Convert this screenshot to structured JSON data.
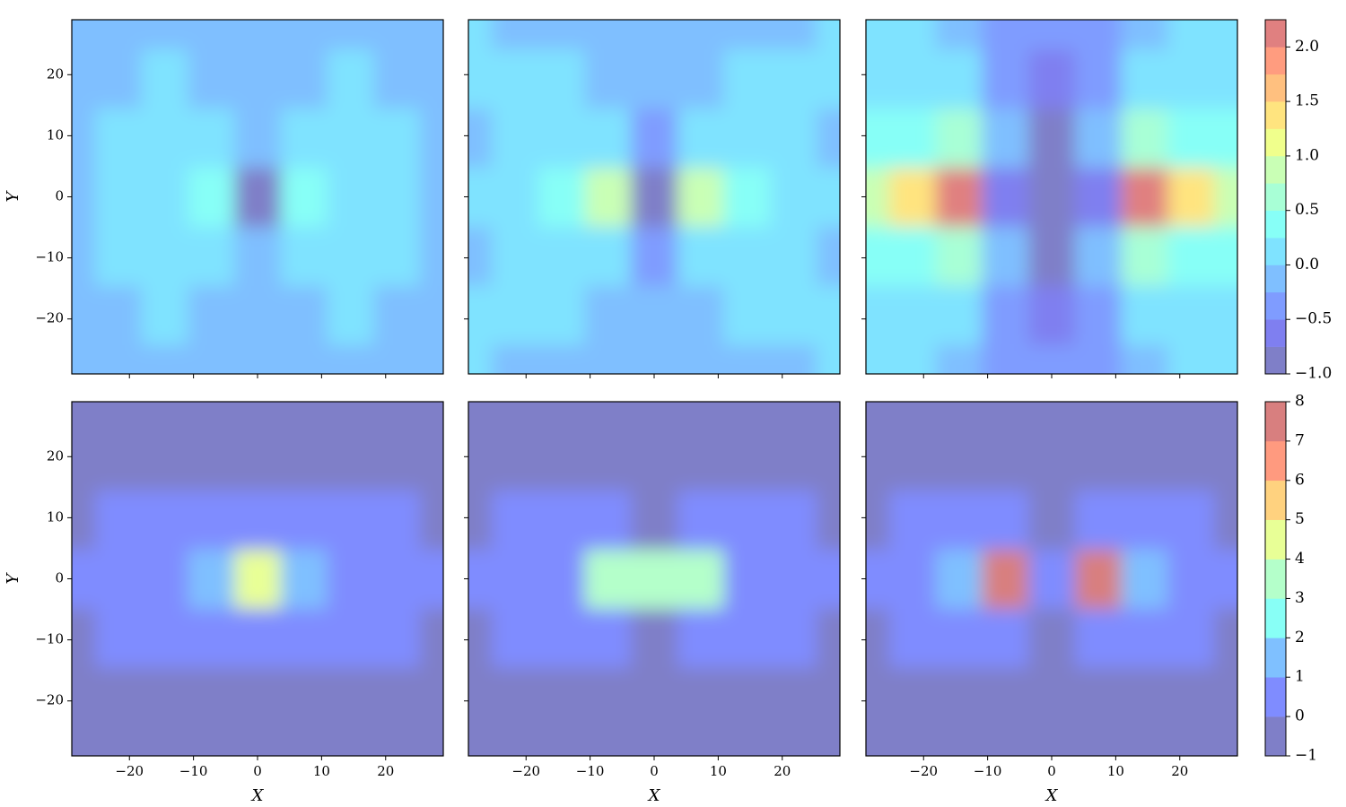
{
  "chart_data": [
    {
      "type": "contour",
      "xlim": [
        -29,
        29
      ],
      "ylim": [
        -29,
        29
      ],
      "ylabel": "Y",
      "yticks": [
        {
          "value": -20,
          "label": "−20"
        },
        {
          "value": -10,
          "label": "−10"
        },
        0,
        10,
        20
      ],
      "x": [
        -29,
        -21.75,
        -14.5,
        -7.25,
        0,
        7.25,
        14.5,
        21.75,
        29
      ],
      "y": [
        -29,
        -19.33,
        -9.67,
        0,
        9.67,
        19.33,
        29
      ],
      "z": [
        [
          -0.1,
          -0.1,
          -0.1,
          -0.1,
          -0.1,
          -0.1,
          -0.1,
          -0.1,
          -0.1
        ],
        [
          -0.1,
          -0.1,
          0.05,
          -0.1,
          -0.15,
          -0.1,
          0.05,
          -0.1,
          -0.1
        ],
        [
          -0.1,
          0.05,
          0.1,
          0.1,
          -0.2,
          0.1,
          0.1,
          0.05,
          -0.1
        ],
        [
          -0.1,
          0.05,
          0.15,
          0.4,
          -0.9,
          0.4,
          0.15,
          0.05,
          -0.1
        ],
        [
          -0.1,
          0.05,
          0.1,
          0.1,
          -0.2,
          0.1,
          0.1,
          0.05,
          -0.1
        ],
        [
          -0.1,
          -0.1,
          0.05,
          -0.1,
          -0.15,
          -0.1,
          0.05,
          -0.1,
          -0.1
        ],
        [
          -0.1,
          -0.1,
          -0.1,
          -0.1,
          -0.1,
          -0.1,
          -0.1,
          -0.1,
          -0.1
        ]
      ]
    },
    {
      "type": "contour",
      "xlim": [
        -29,
        29
      ],
      "ylim": [
        -29,
        29
      ],
      "x": [
        -29,
        -21.75,
        -14.5,
        -7.25,
        0,
        7.25,
        14.5,
        21.75,
        29
      ],
      "y": [
        -29,
        -19.33,
        -9.67,
        0,
        9.67,
        19.33,
        29
      ],
      "z": [
        [
          0.05,
          -0.1,
          -0.1,
          -0.1,
          -0.1,
          -0.1,
          -0.1,
          -0.1,
          0.05
        ],
        [
          0.05,
          0.1,
          0.05,
          -0.1,
          -0.1,
          -0.1,
          0.05,
          0.1,
          0.05
        ],
        [
          -0.1,
          0.1,
          0.1,
          0.05,
          -0.3,
          0.05,
          0.1,
          0.1,
          -0.1
        ],
        [
          0.05,
          0.15,
          0.4,
          0.9,
          -0.9,
          0.9,
          0.4,
          0.15,
          0.05
        ],
        [
          -0.1,
          0.1,
          0.1,
          0.05,
          -0.3,
          0.05,
          0.1,
          0.1,
          -0.1
        ],
        [
          0.05,
          0.1,
          0.05,
          -0.1,
          -0.1,
          -0.1,
          0.05,
          0.1,
          0.05
        ],
        [
          0.05,
          -0.1,
          -0.1,
          -0.1,
          -0.1,
          -0.1,
          -0.1,
          -0.1,
          0.05
        ]
      ]
    },
    {
      "type": "contour",
      "xlim": [
        -29,
        29
      ],
      "ylim": [
        -29,
        29
      ],
      "x": [
        -29,
        -21.75,
        -14.5,
        -7.25,
        0,
        7.25,
        14.5,
        21.75,
        29
      ],
      "y": [
        -29,
        -19.33,
        -9.67,
        0,
        9.67,
        19.33,
        29
      ],
      "z": [
        [
          0.05,
          0.05,
          -0.1,
          -0.3,
          -0.3,
          -0.3,
          -0.1,
          0.05,
          0.05
        ],
        [
          0.1,
          0.2,
          0.05,
          -0.3,
          -0.6,
          -0.3,
          0.05,
          0.2,
          0.1
        ],
        [
          0.3,
          0.45,
          0.6,
          -0.2,
          -0.9,
          -0.2,
          0.6,
          0.45,
          0.3
        ],
        [
          0.8,
          1.3,
          2.0,
          -0.6,
          -0.95,
          -0.6,
          2.0,
          1.3,
          0.8
        ],
        [
          0.3,
          0.45,
          0.6,
          -0.2,
          -0.9,
          -0.2,
          0.6,
          0.45,
          0.3
        ],
        [
          0.1,
          0.2,
          0.05,
          -0.3,
          -0.6,
          -0.3,
          0.05,
          0.2,
          0.1
        ],
        [
          0.05,
          0.05,
          -0.1,
          -0.3,
          -0.3,
          -0.3,
          -0.1,
          0.05,
          0.05
        ]
      ],
      "colorbar": {
        "levels": [
          -1,
          -0.75,
          -0.5,
          -0.25,
          0,
          0.25,
          0.5,
          0.75,
          1,
          1.25,
          1.5,
          1.75,
          2,
          2.25
        ],
        "colors": [
          "#7f7fc8",
          "#7f7ff0",
          "#7f9cff",
          "#7fbfff",
          "#7fe3ff",
          "#87fff7",
          "#a8ffd6",
          "#c9ffb5",
          "#f0ff8c",
          "#ffe47f",
          "#ffc07f",
          "#ff9c7f",
          "#e08080"
        ],
        "ticks": [
          {
            "value": -1,
            "label": "−1.0"
          },
          {
            "value": -0.5,
            "label": "−0.5"
          },
          {
            "value": 0,
            "label": "0.0"
          },
          0.5,
          {
            "value": 1,
            "label": "1.0"
          },
          1.5,
          {
            "value": 2,
            "label": "2.0"
          }
        ]
      }
    },
    {
      "type": "contour",
      "xlim": [
        -29,
        29
      ],
      "ylim": [
        -29,
        29
      ],
      "xlabel": "X",
      "ylabel": "Y",
      "xticks": [
        {
          "value": -20,
          "label": "−20"
        },
        {
          "value": -10,
          "label": "−10"
        },
        0,
        10,
        20
      ],
      "yticks": [
        {
          "value": -20,
          "label": "−20"
        },
        {
          "value": -10,
          "label": "−10"
        },
        0,
        10,
        20
      ],
      "x": [
        -29,
        -21.75,
        -14.5,
        -7.25,
        0,
        7.25,
        14.5,
        21.75,
        29
      ],
      "y": [
        -29,
        -19.33,
        -9.67,
        0,
        9.67,
        19.33,
        29
      ],
      "z": [
        [
          -0.5,
          -0.5,
          -0.5,
          -0.5,
          -0.5,
          -0.5,
          -0.5,
          -0.5,
          -0.5
        ],
        [
          -0.5,
          -0.5,
          -0.5,
          -0.5,
          -0.5,
          -0.5,
          -0.5,
          -0.5,
          -0.5
        ],
        [
          -0.5,
          0.3,
          0.5,
          0.5,
          0.5,
          0.5,
          0.5,
          0.3,
          -0.5
        ],
        [
          0.3,
          0.6,
          0.8,
          1.5,
          4.5,
          1.5,
          0.8,
          0.6,
          0.3
        ],
        [
          -0.5,
          0.3,
          0.5,
          0.5,
          0.5,
          0.5,
          0.5,
          0.3,
          -0.5
        ],
        [
          -0.5,
          -0.5,
          -0.5,
          -0.5,
          -0.5,
          -0.5,
          -0.5,
          -0.5,
          -0.5
        ],
        [
          -0.5,
          -0.5,
          -0.5,
          -0.5,
          -0.5,
          -0.5,
          -0.5,
          -0.5,
          -0.5
        ]
      ]
    },
    {
      "type": "contour",
      "xlim": [
        -29,
        29
      ],
      "ylim": [
        -29,
        29
      ],
      "xlabel": "X",
      "xticks": [
        {
          "value": -20,
          "label": "−20"
        },
        {
          "value": -10,
          "label": "−10"
        },
        0,
        10,
        20
      ],
      "x": [
        -29,
        -21.75,
        -14.5,
        -7.25,
        0,
        7.25,
        14.5,
        21.75,
        29
      ],
      "y": [
        -29,
        -19.33,
        -9.67,
        0,
        9.67,
        19.33,
        29
      ],
      "z": [
        [
          -0.5,
          -0.5,
          -0.5,
          -0.5,
          -0.5,
          -0.5,
          -0.5,
          -0.5,
          -0.5
        ],
        [
          -0.5,
          -0.5,
          -0.5,
          -0.5,
          -0.5,
          -0.5,
          -0.5,
          -0.5,
          -0.5
        ],
        [
          -0.5,
          0.3,
          0.4,
          0.3,
          -0.5,
          0.3,
          0.4,
          0.3,
          -0.5
        ],
        [
          0.3,
          0.6,
          0.8,
          3.5,
          3.0,
          3.5,
          0.8,
          0.6,
          0.3
        ],
        [
          -0.5,
          0.3,
          0.4,
          0.3,
          -0.5,
          0.3,
          0.4,
          0.3,
          -0.5
        ],
        [
          -0.5,
          -0.5,
          -0.5,
          -0.5,
          -0.5,
          -0.5,
          -0.5,
          -0.5,
          -0.5
        ],
        [
          -0.5,
          -0.5,
          -0.5,
          -0.5,
          -0.5,
          -0.5,
          -0.5,
          -0.5,
          -0.5
        ]
      ]
    },
    {
      "type": "contour",
      "xlim": [
        -29,
        29
      ],
      "ylim": [
        -29,
        29
      ],
      "xlabel": "X",
      "xticks": [
        {
          "value": -20,
          "label": "−20"
        },
        {
          "value": -10,
          "label": "−10"
        },
        0,
        10,
        20
      ],
      "x": [
        -29,
        -21.75,
        -14.5,
        -7.25,
        0,
        7.25,
        14.5,
        21.75,
        29
      ],
      "y": [
        -29,
        -19.33,
        -9.67,
        0,
        9.67,
        19.33,
        29
      ],
      "z": [
        [
          -0.5,
          -0.5,
          -0.5,
          -0.5,
          -0.5,
          -0.5,
          -0.5,
          -0.5,
          -0.5
        ],
        [
          -0.5,
          -0.5,
          -0.5,
          -0.5,
          -0.5,
          -0.5,
          -0.5,
          -0.5,
          -0.5
        ],
        [
          -0.5,
          0.3,
          0.3,
          0.3,
          -0.5,
          0.3,
          0.3,
          0.3,
          -0.5
        ],
        [
          0.2,
          0.5,
          1.5,
          7.0,
          0.5,
          7.0,
          1.5,
          0.5,
          0.2
        ],
        [
          -0.5,
          0.3,
          0.3,
          0.3,
          -0.5,
          0.3,
          0.3,
          0.3,
          -0.5
        ],
        [
          -0.5,
          -0.5,
          -0.5,
          -0.5,
          -0.5,
          -0.5,
          -0.5,
          -0.5,
          -0.5
        ],
        [
          -0.5,
          -0.5,
          -0.5,
          -0.5,
          -0.5,
          -0.5,
          -0.5,
          -0.5,
          -0.5
        ]
      ],
      "colorbar": {
        "levels": [
          -1,
          0,
          1,
          2,
          3,
          4,
          5,
          6,
          7,
          8
        ],
        "colors": [
          "#7f7fc8",
          "#7f8cff",
          "#7fc0ff",
          "#88fff6",
          "#b4ffca",
          "#e8ff96",
          "#ffd27f",
          "#ff9a7f",
          "#d87f7f"
        ],
        "ticks": [
          {
            "value": -1,
            "label": "−1"
          },
          0,
          1,
          2,
          3,
          4,
          5,
          6,
          7,
          8
        ]
      }
    }
  ]
}
